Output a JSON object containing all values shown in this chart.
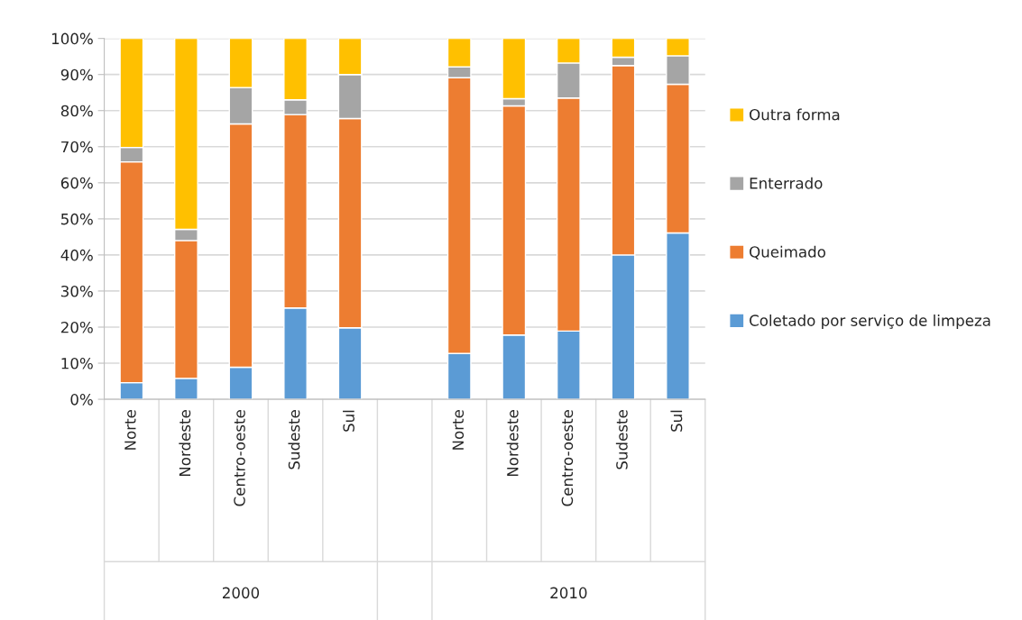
{
  "chart_data": {
    "type": "bar",
    "stacked": true,
    "categories": [
      "Norte",
      "Nordeste",
      "Centro-oeste",
      "Sudeste",
      "Sul",
      null,
      "Norte",
      "Nordeste",
      "Centro-oeste",
      "Sudeste",
      "Sul"
    ],
    "series": [
      {
        "name": "Coletado por serviço de limpeza",
        "color": "#5b9bd5",
        "values": [
          4.6,
          5.8,
          8.9,
          25.3,
          19.8,
          null,
          12.7,
          17.8,
          18.9,
          40.0,
          46.1
        ]
      },
      {
        "name": "Queimado",
        "color": "#ed7d31",
        "values": [
          61.2,
          38.2,
          67.4,
          53.6,
          58.0,
          null,
          76.4,
          63.5,
          64.6,
          52.5,
          41.2
        ]
      },
      {
        "name": "Enterrado",
        "color": "#a5a5a5",
        "values": [
          4.0,
          3.1,
          10.1,
          4.1,
          12.2,
          null,
          3.0,
          2.0,
          9.7,
          2.3,
          7.9
        ]
      },
      {
        "name": "Outra forma",
        "color": "#ffc000",
        "values": [
          30.2,
          52.9,
          13.6,
          17.0,
          10.0,
          null,
          7.9,
          16.7,
          6.8,
          5.2,
          4.8
        ]
      }
    ],
    "ylim": [
      0,
      100
    ],
    "yticks": [
      {
        "value": 0,
        "label": "0%"
      },
      {
        "value": 10,
        "label": "10%"
      },
      {
        "value": 20,
        "label": "20%"
      },
      {
        "value": 30,
        "label": "30%"
      },
      {
        "value": 40,
        "label": "40%"
      },
      {
        "value": 50,
        "label": "50%"
      },
      {
        "value": 60,
        "label": "60%"
      },
      {
        "value": 70,
        "label": "70%"
      },
      {
        "value": 80,
        "label": "80%"
      },
      {
        "value": 90,
        "label": "90%"
      },
      {
        "value": 100,
        "label": "100%"
      }
    ],
    "grid": "y",
    "legend": "right",
    "annotations": [
      "2000",
      "2010"
    ]
  }
}
